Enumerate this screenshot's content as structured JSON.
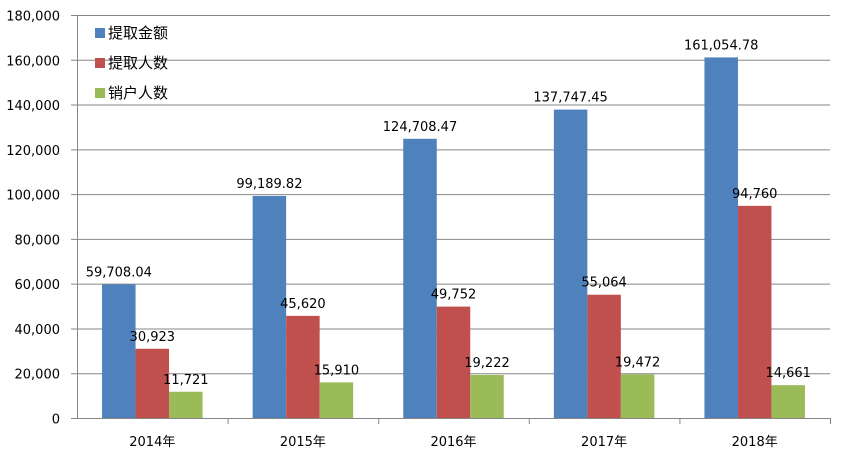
{
  "chart_data": {
    "type": "bar",
    "title": "",
    "xlabel": "",
    "ylabel": "",
    "categories": [
      "2014年",
      "2015年",
      "2016年",
      "2017年",
      "2018年"
    ],
    "series": [
      {
        "name": "提取金额",
        "color": "#4f81bd",
        "values": [
          59708.04,
          99189.82,
          124708.47,
          137747.45,
          161054.78
        ],
        "labels": [
          "59,708.04",
          "99,189.82",
          "124,708.47",
          "137,747.45",
          "161,054.78"
        ]
      },
      {
        "name": "提取人数",
        "color": "#c0504d",
        "values": [
          30923,
          45620,
          49752,
          55064,
          94760
        ],
        "labels": [
          "30,923",
          "45,620",
          "49,752",
          "55,064",
          "94,760"
        ]
      },
      {
        "name": "销户人数",
        "color": "#9bbb59",
        "values": [
          11721,
          15910,
          19222,
          19472,
          14661
        ],
        "labels": [
          "11,721",
          "15,910",
          "19,222",
          "19,472",
          "14,661"
        ]
      }
    ],
    "ylim": [
      0,
      180000
    ],
    "yticks": [
      0,
      20000,
      40000,
      60000,
      80000,
      100000,
      120000,
      140000,
      160000,
      180000
    ],
    "ytick_labels": [
      "0",
      "20,000",
      "40,000",
      "60,000",
      "80,000",
      "100,000",
      "120,000",
      "140,000",
      "160,000",
      "180,000"
    ],
    "grid": true,
    "legend_position": "top-left"
  }
}
